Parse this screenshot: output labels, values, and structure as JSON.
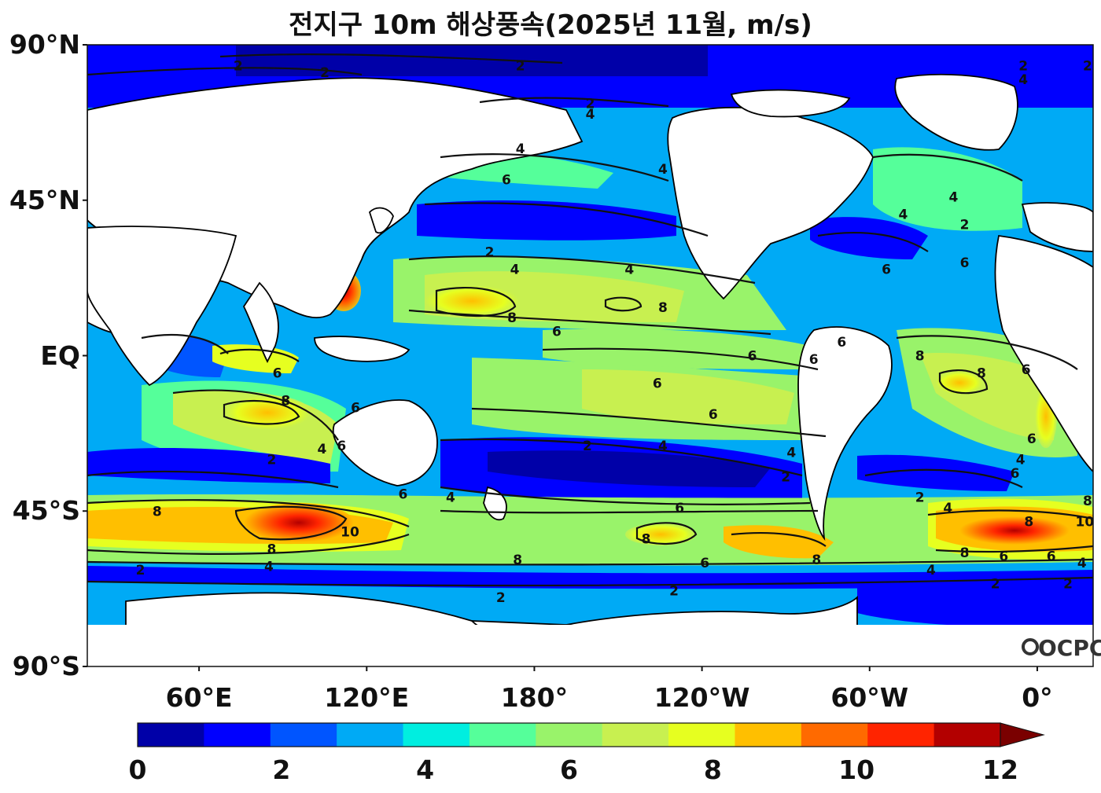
{
  "title": "전지구 10m 해상풍속(2025년 11월, m/s)",
  "logo_text": "OCPC",
  "lat_ticks": [
    {
      "label": "90°N",
      "value": 90
    },
    {
      "label": "45°N",
      "value": 45
    },
    {
      "label": "EQ",
      "value": 0
    },
    {
      "label": "45°S",
      "value": -45
    },
    {
      "label": "90°S",
      "value": -90
    }
  ],
  "lon_ticks": [
    {
      "label": "60°E",
      "value": 60
    },
    {
      "label": "120°E",
      "value": 120
    },
    {
      "label": "180°",
      "value": 180
    },
    {
      "label": "120°W",
      "value": 240
    },
    {
      "label": "60°W",
      "value": 300
    },
    {
      "label": "0°",
      "value": 360
    }
  ],
  "colorbar": {
    "min": 0,
    "max": 12,
    "step": 1,
    "extend": "max",
    "colors": [
      "#0000a8",
      "#0000ff",
      "#0055ff",
      "#00aaf5",
      "#00eee0",
      "#55ff9a",
      "#99f36a",
      "#c8f050",
      "#e6ff20",
      "#ffbf00",
      "#ff6a00",
      "#ff2400",
      "#b30000"
    ],
    "extend_color": "#7a0000",
    "tick_labels": [
      "0",
      "2",
      "4",
      "6",
      "8",
      "10",
      "12"
    ]
  },
  "contour_labels": [
    {
      "text": "2",
      "lon": 74,
      "lat": 84
    },
    {
      "text": "2",
      "lon": 105,
      "lat": 82
    },
    {
      "text": "2",
      "lon": 175,
      "lat": 84
    },
    {
      "text": "2",
      "lon": 200,
      "lat": 73
    },
    {
      "text": "4",
      "lon": 200,
      "lat": 70
    },
    {
      "text": "2",
      "lon": 355,
      "lat": 84
    },
    {
      "text": "2",
      "lon": 378,
      "lat": 84
    },
    {
      "text": "4",
      "lon": 355,
      "lat": 80
    },
    {
      "text": "4",
      "lon": 175,
      "lat": 60
    },
    {
      "text": "6",
      "lon": 170,
      "lat": 51
    },
    {
      "text": "4",
      "lon": 226,
      "lat": 54
    },
    {
      "text": "4",
      "lon": 330,
      "lat": 46
    },
    {
      "text": "2",
      "lon": 334,
      "lat": 38
    },
    {
      "text": "4",
      "lon": 312,
      "lat": 41
    },
    {
      "text": "2",
      "lon": 164,
      "lat": 30
    },
    {
      "text": "4",
      "lon": 173,
      "lat": 25
    },
    {
      "text": "4",
      "lon": 214,
      "lat": 25
    },
    {
      "text": "8",
      "lon": 172,
      "lat": 11
    },
    {
      "text": "8",
      "lon": 226,
      "lat": 14
    },
    {
      "text": "6",
      "lon": 188,
      "lat": 7
    },
    {
      "text": "6",
      "lon": 306,
      "lat": 25
    },
    {
      "text": "6",
      "lon": 334,
      "lat": 27
    },
    {
      "text": "6",
      "lon": 290,
      "lat": 4
    },
    {
      "text": "6",
      "lon": 258,
      "lat": 0
    },
    {
      "text": "6",
      "lon": 280,
      "lat": -1
    },
    {
      "text": "8",
      "lon": 318,
      "lat": 0
    },
    {
      "text": "8",
      "lon": 340,
      "lat": -5
    },
    {
      "text": "6",
      "lon": 356,
      "lat": -4
    },
    {
      "text": "6",
      "lon": 224,
      "lat": -8
    },
    {
      "text": "6",
      "lon": 244,
      "lat": -17
    },
    {
      "text": "4",
      "lon": 226,
      "lat": -26
    },
    {
      "text": "2",
      "lon": 199,
      "lat": -26
    },
    {
      "text": "4",
      "lon": 272,
      "lat": -28
    },
    {
      "text": "2",
      "lon": 270,
      "lat": -35
    },
    {
      "text": "6",
      "lon": 88,
      "lat": -5
    },
    {
      "text": "8",
      "lon": 91,
      "lat": -13
    },
    {
      "text": "6",
      "lon": 116,
      "lat": -15
    },
    {
      "text": "4",
      "lon": 104,
      "lat": -27
    },
    {
      "text": "6",
      "lon": 111,
      "lat": -26
    },
    {
      "text": "2",
      "lon": 86,
      "lat": -30
    },
    {
      "text": "8",
      "lon": 45,
      "lat": -45
    },
    {
      "text": "10",
      "lon": 114,
      "lat": -51
    },
    {
      "text": "8",
      "lon": 86,
      "lat": -56
    },
    {
      "text": "4",
      "lon": 85,
      "lat": -61
    },
    {
      "text": "2",
      "lon": 39,
      "lat": -62
    },
    {
      "text": "6",
      "lon": 133,
      "lat": -40
    },
    {
      "text": "4",
      "lon": 150,
      "lat": -41
    },
    {
      "text": "6",
      "lon": 232,
      "lat": -44
    },
    {
      "text": "8",
      "lon": 220,
      "lat": -53
    },
    {
      "text": "6",
      "lon": 241,
      "lat": -60
    },
    {
      "text": "8",
      "lon": 174,
      "lat": -59
    },
    {
      "text": "8",
      "lon": 281,
      "lat": -59
    },
    {
      "text": "2",
      "lon": 230,
      "lat": -68
    },
    {
      "text": "2",
      "lon": 168,
      "lat": -70
    },
    {
      "text": "10",
      "lon": 377,
      "lat": -48
    },
    {
      "text": "8",
      "lon": 357,
      "lat": -48
    },
    {
      "text": "8",
      "lon": 378,
      "lat": -42
    },
    {
      "text": "8",
      "lon": 334,
      "lat": -57
    },
    {
      "text": "6",
      "lon": 348,
      "lat": -58
    },
    {
      "text": "6",
      "lon": 365,
      "lat": -58
    },
    {
      "text": "4",
      "lon": 376,
      "lat": -60
    },
    {
      "text": "4",
      "lon": 322,
      "lat": -62
    },
    {
      "text": "2",
      "lon": 345,
      "lat": -66
    },
    {
      "text": "2",
      "lon": 371,
      "lat": -66
    },
    {
      "text": "4",
      "lon": 328,
      "lat": -44
    },
    {
      "text": "2",
      "lon": 318,
      "lat": -41
    },
    {
      "text": "6",
      "lon": 352,
      "lat": -34
    },
    {
      "text": "4",
      "lon": 354,
      "lat": -30
    },
    {
      "text": "6",
      "lon": 358,
      "lat": -24
    }
  ]
}
